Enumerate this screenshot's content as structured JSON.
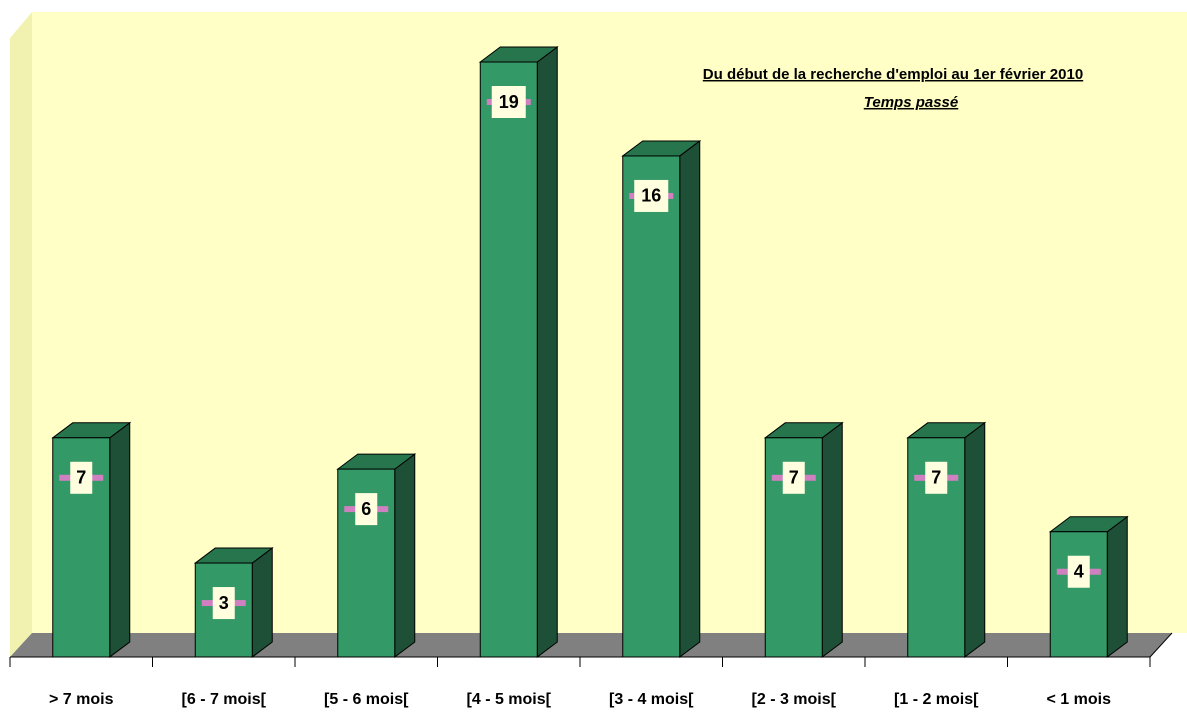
{
  "chart_data": {
    "type": "bar3d",
    "title": "Du début de la recherche d'emploi au 1er février 2010",
    "subtitle": "Temps passé",
    "categories": [
      "> 7 mois",
      "[6 - 7 mois[",
      "[5 - 6 mois[",
      "[4 - 5 mois[",
      "[3 - 4 mois[",
      "[2 - 3 mois[",
      "[1 - 2 mois[",
      "< 1 mois"
    ],
    "values": [
      7,
      3,
      6,
      19,
      16,
      7,
      7,
      4
    ],
    "color": "#339966"
  }
}
